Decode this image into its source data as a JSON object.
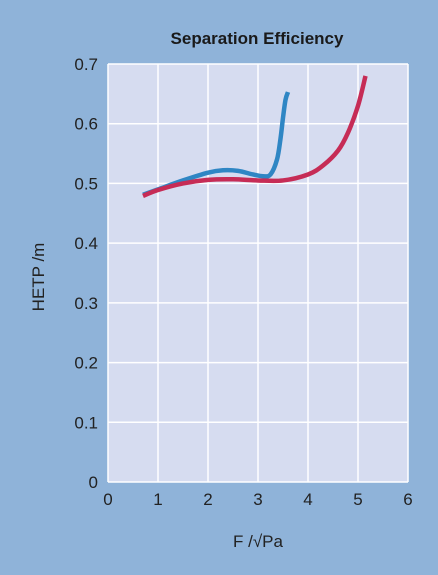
{
  "chart_data": {
    "type": "line",
    "title": "Separation Efficiency",
    "xlabel": "F /√Pa",
    "ylabel": "HETP /m",
    "xlim": [
      0,
      6
    ],
    "ylim": [
      0,
      0.7
    ],
    "x_ticks": [
      "0",
      "1",
      "2",
      "3",
      "4",
      "5",
      "6"
    ],
    "y_ticks": [
      "0",
      "0.1",
      "0.2",
      "0.3",
      "0.4",
      "0.5",
      "0.6",
      "0.7"
    ],
    "grid": true,
    "colors": {
      "background": "#8fb3d9",
      "plot_area": "#d6dcf0",
      "grid": "#ffffff"
    },
    "series": [
      {
        "color": "#2f86c4",
        "x": [
          0.7,
          1.0,
          1.5,
          2.0,
          2.3,
          2.6,
          2.9,
          3.1,
          3.25,
          3.38,
          3.45,
          3.5,
          3.55,
          3.6
        ],
        "y": [
          0.481,
          0.49,
          0.505,
          0.518,
          0.522,
          0.521,
          0.515,
          0.512,
          0.515,
          0.54,
          0.575,
          0.61,
          0.64,
          0.653
        ]
      },
      {
        "color": "#c62c56",
        "x": [
          0.7,
          1.0,
          1.5,
          2.0,
          2.5,
          3.0,
          3.5,
          4.0,
          4.3,
          4.6,
          4.8,
          5.0,
          5.15
        ],
        "y": [
          0.479,
          0.489,
          0.5,
          0.506,
          0.507,
          0.505,
          0.505,
          0.515,
          0.53,
          0.555,
          0.585,
          0.63,
          0.68
        ]
      }
    ]
  }
}
